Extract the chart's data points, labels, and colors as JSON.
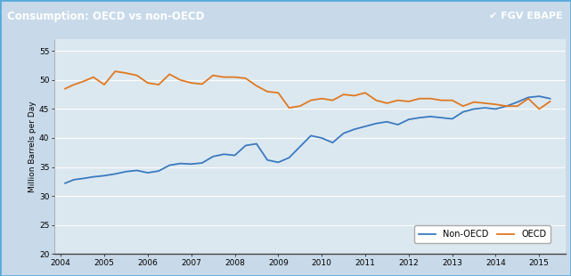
{
  "title": "Consumption: OECD vs non-OECD",
  "ylabel": "Million Barrels per Day",
  "logo_text": "FGV EBAPE",
  "header_bg": "#3d9ad1",
  "header_text_color": "#ffffff",
  "plot_bg": "#dce8f0",
  "fig_bg": "#c8daea",
  "border_color": "#5aabdc",
  "ylim": [
    20,
    57
  ],
  "yticks": [
    20,
    25,
    30,
    35,
    40,
    45,
    50,
    55
  ],
  "xlim_start": 2003.85,
  "xlim_end": 2015.6,
  "xtick_labels": [
    "2004",
    "2005",
    "2006",
    "2007",
    "2008",
    "2009",
    "2010",
    "2011",
    "2012",
    "2013",
    "2014",
    "2015"
  ],
  "non_oecd_color": "#3a7abf",
  "oecd_color": "#e07820",
  "non_oecd_label": "Non-OECD",
  "oecd_label": "OECD",
  "non_oecd_data": [
    [
      2004.1,
      32.2
    ],
    [
      2004.3,
      32.8
    ],
    [
      2004.5,
      33.0
    ],
    [
      2004.75,
      33.3
    ],
    [
      2005.0,
      33.5
    ],
    [
      2005.25,
      33.8
    ],
    [
      2005.5,
      34.2
    ],
    [
      2005.75,
      34.4
    ],
    [
      2006.0,
      34.0
    ],
    [
      2006.25,
      34.3
    ],
    [
      2006.5,
      35.3
    ],
    [
      2006.75,
      35.6
    ],
    [
      2007.0,
      35.5
    ],
    [
      2007.25,
      35.7
    ],
    [
      2007.5,
      36.8
    ],
    [
      2007.75,
      37.2
    ],
    [
      2008.0,
      37.0
    ],
    [
      2008.25,
      38.7
    ],
    [
      2008.5,
      39.0
    ],
    [
      2008.75,
      36.2
    ],
    [
      2009.0,
      35.8
    ],
    [
      2009.25,
      36.6
    ],
    [
      2009.5,
      38.5
    ],
    [
      2009.75,
      40.4
    ],
    [
      2010.0,
      40.0
    ],
    [
      2010.25,
      39.2
    ],
    [
      2010.5,
      40.8
    ],
    [
      2010.75,
      41.5
    ],
    [
      2011.0,
      42.0
    ],
    [
      2011.25,
      42.5
    ],
    [
      2011.5,
      42.8
    ],
    [
      2011.75,
      42.3
    ],
    [
      2012.0,
      43.2
    ],
    [
      2012.25,
      43.5
    ],
    [
      2012.5,
      43.7
    ],
    [
      2012.75,
      43.5
    ],
    [
      2013.0,
      43.3
    ],
    [
      2013.25,
      44.5
    ],
    [
      2013.5,
      45.0
    ],
    [
      2013.75,
      45.2
    ],
    [
      2014.0,
      45.0
    ],
    [
      2014.25,
      45.5
    ],
    [
      2014.5,
      46.2
    ],
    [
      2014.75,
      47.0
    ],
    [
      2015.0,
      47.2
    ],
    [
      2015.25,
      46.8
    ]
  ],
  "oecd_data": [
    [
      2004.1,
      48.5
    ],
    [
      2004.3,
      49.2
    ],
    [
      2004.5,
      49.7
    ],
    [
      2004.75,
      50.5
    ],
    [
      2005.0,
      49.2
    ],
    [
      2005.25,
      51.5
    ],
    [
      2005.5,
      51.2
    ],
    [
      2005.75,
      50.8
    ],
    [
      2006.0,
      49.5
    ],
    [
      2006.25,
      49.2
    ],
    [
      2006.5,
      51.0
    ],
    [
      2006.75,
      50.0
    ],
    [
      2007.0,
      49.5
    ],
    [
      2007.25,
      49.3
    ],
    [
      2007.5,
      50.8
    ],
    [
      2007.75,
      50.5
    ],
    [
      2008.0,
      50.5
    ],
    [
      2008.25,
      50.3
    ],
    [
      2008.5,
      49.0
    ],
    [
      2008.75,
      48.0
    ],
    [
      2009.0,
      47.8
    ],
    [
      2009.25,
      45.2
    ],
    [
      2009.5,
      45.5
    ],
    [
      2009.75,
      46.5
    ],
    [
      2010.0,
      46.8
    ],
    [
      2010.25,
      46.5
    ],
    [
      2010.5,
      47.5
    ],
    [
      2010.75,
      47.3
    ],
    [
      2011.0,
      47.8
    ],
    [
      2011.25,
      46.5
    ],
    [
      2011.5,
      46.0
    ],
    [
      2011.75,
      46.5
    ],
    [
      2012.0,
      46.3
    ],
    [
      2012.25,
      46.8
    ],
    [
      2012.5,
      46.8
    ],
    [
      2012.75,
      46.5
    ],
    [
      2013.0,
      46.5
    ],
    [
      2013.25,
      45.5
    ],
    [
      2013.5,
      46.2
    ],
    [
      2013.75,
      46.0
    ],
    [
      2014.0,
      45.8
    ],
    [
      2014.25,
      45.5
    ],
    [
      2014.5,
      45.5
    ],
    [
      2014.75,
      46.8
    ],
    [
      2015.0,
      45.0
    ],
    [
      2015.25,
      46.3
    ]
  ]
}
